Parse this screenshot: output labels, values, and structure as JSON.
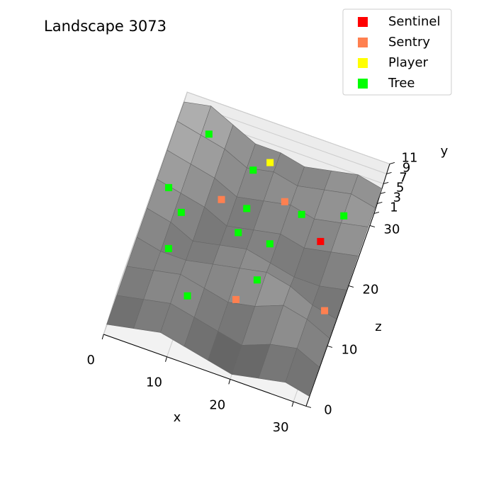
{
  "chart_data": {
    "type": "surface3d",
    "title": "Landscape 3073",
    "x_label": "x",
    "y_label": "y",
    "z_label": "z",
    "xlim": [
      0,
      32
    ],
    "zlim": [
      0,
      32
    ],
    "ylim": [
      1,
      11
    ],
    "xticks": [
      0,
      10,
      20,
      30
    ],
    "zticks": [
      0,
      10,
      20,
      30
    ],
    "yticks": [
      1,
      3,
      5,
      7,
      9,
      11
    ],
    "grid": true,
    "grid_x": [
      0,
      4,
      8,
      12,
      16,
      20,
      24,
      28,
      32
    ],
    "grid_z": [
      0,
      4,
      8,
      12,
      16,
      20,
      24,
      28,
      32
    ],
    "heights": [
      [
        3,
        4,
        5,
        4,
        3,
        2,
        3,
        4,
        3
      ],
      [
        4,
        5,
        6,
        5,
        4,
        3,
        5,
        6,
        4
      ],
      [
        5,
        6,
        7,
        6,
        5,
        6,
        8,
        7,
        5
      ],
      [
        6,
        5,
        5,
        6,
        7,
        8,
        7,
        5,
        4
      ],
      [
        7,
        6,
        4,
        5,
        6,
        5,
        4,
        4,
        5
      ],
      [
        8,
        7,
        6,
        4,
        5,
        6,
        5,
        6,
        7
      ],
      [
        9,
        8,
        7,
        5,
        6,
        7,
        6,
        7,
        8
      ],
      [
        10,
        9,
        8,
        6,
        7,
        6,
        7,
        8,
        7
      ],
      [
        9,
        10,
        8,
        6,
        6,
        5,
        6,
        7,
        6
      ]
    ],
    "legend": "upper right",
    "series": [
      {
        "name": "Sentinel",
        "color": "#ff0000",
        "x": [
          26
        ],
        "z": [
          21
        ],
        "y": [
          6
        ]
      },
      {
        "name": "Sentry",
        "color": "#ff8050",
        "x": [
          10,
          19,
          17,
          30
        ],
        "z": [
          22,
          25,
          8,
          11
        ],
        "y": [
          6,
          6,
          6,
          6
        ]
      },
      {
        "name": "Player",
        "color": "#ffff00",
        "x": [
          15
        ],
        "z": [
          30
        ],
        "y": [
          6
        ]
      },
      {
        "name": "Tree",
        "color": "#00ff00",
        "x": [
          5,
          13,
          2,
          5,
          14,
          22,
          28,
          14,
          19,
          5,
          19,
          10
        ],
        "z": [
          31,
          28,
          21,
          18,
          22,
          24,
          26,
          18,
          18,
          12,
          12,
          6
        ],
        "y": [
          6,
          6,
          6,
          6,
          6,
          6,
          6,
          6,
          6,
          6,
          6,
          6
        ]
      }
    ]
  }
}
